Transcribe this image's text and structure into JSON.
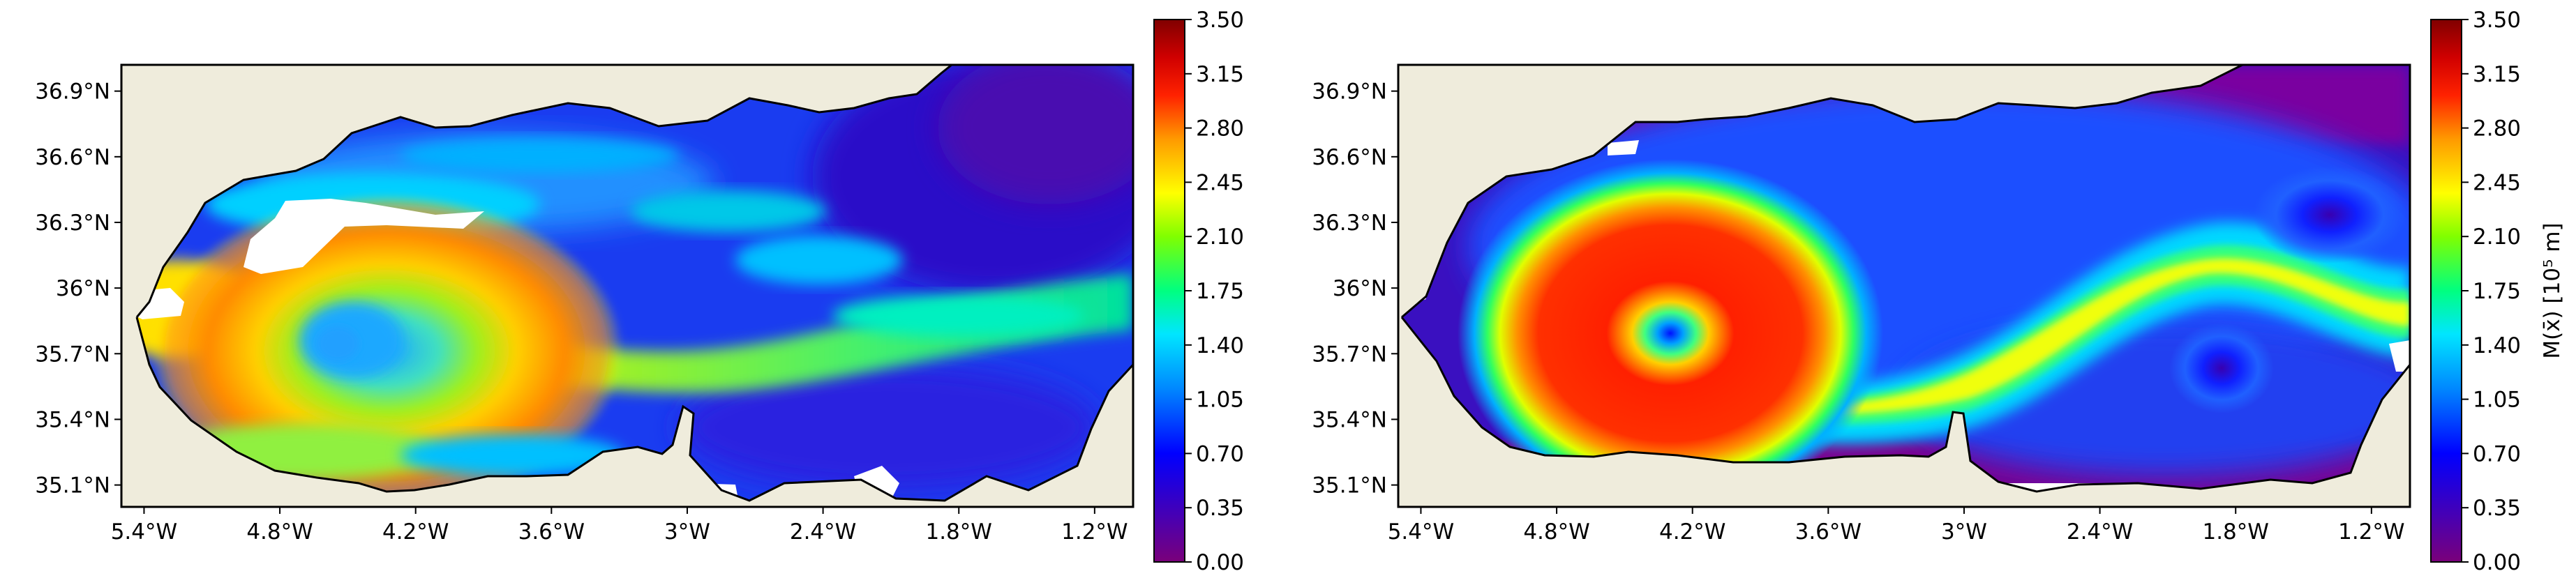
{
  "chart_data": [
    {
      "type": "heatmap",
      "title": "",
      "xlabel": "",
      "ylabel": "",
      "x_ticks": [
        "5.4°W",
        "4.8°W",
        "4.2°W",
        "3.6°W",
        "3°W",
        "2.4°W",
        "1.8°W",
        "1.2°W"
      ],
      "x_tick_values": [
        -5.4,
        -4.8,
        -4.2,
        -3.6,
        -3.0,
        -2.4,
        -1.8,
        -1.2
      ],
      "y_ticks": [
        "36.9°N",
        "36.6°N",
        "36.3°N",
        "36°N",
        "35.7°N",
        "35.4°N",
        "35.1°N"
      ],
      "y_tick_values": [
        36.9,
        36.6,
        36.3,
        36.0,
        35.7,
        35.4,
        35.1
      ],
      "xlim": [
        -5.5,
        -1.03
      ],
      "ylim": [
        35.0,
        37.02
      ],
      "colorbar": {
        "ticks": [
          "0.00",
          "0.35",
          "0.70",
          "1.05",
          "1.40",
          "1.75",
          "2.10",
          "2.45",
          "2.80",
          "3.15",
          "3.50"
        ],
        "range": [
          0.0,
          3.5
        ],
        "label": ""
      },
      "features": [
        {
          "name": "large anticyclonic gyre",
          "lon": -4.1,
          "lat": 35.75,
          "peak_value": 2.9
        },
        {
          "name": "gyre core minimum",
          "lon": -4.35,
          "lat": 35.72,
          "value": 1.2
        },
        {
          "name": "eastward jet",
          "lon": -2.6,
          "lat": 35.85,
          "value": 1.8
        }
      ]
    },
    {
      "type": "heatmap",
      "title": "",
      "xlabel": "",
      "ylabel": "",
      "x_ticks": [
        "5.4°W",
        "4.8°W",
        "4.2°W",
        "3.6°W",
        "3°W",
        "2.4°W",
        "1.8°W",
        "1.2°W"
      ],
      "x_tick_values": [
        -5.4,
        -4.8,
        -4.2,
        -3.6,
        -3.0,
        -2.4,
        -1.8,
        -1.2
      ],
      "y_ticks": [
        "36.9°N",
        "36.6°N",
        "36.3°N",
        "36°N",
        "35.7°N",
        "35.4°N",
        "35.1°N"
      ],
      "y_tick_values": [
        36.9,
        36.6,
        36.3,
        36.0,
        35.7,
        35.4,
        35.1
      ],
      "xlim": [
        -5.5,
        -1.03
      ],
      "ylim": [
        35.0,
        37.02
      ],
      "colorbar": {
        "ticks": [
          "0.00",
          "0.35",
          "0.70",
          "1.05",
          "1.40",
          "1.75",
          "2.10",
          "2.45",
          "2.80",
          "3.15",
          "3.50"
        ],
        "range": [
          0.0,
          3.5
        ],
        "label": "M(x̄) [10⁵ m]"
      },
      "features": [
        {
          "name": "large circular gyre",
          "lon": -4.25,
          "lat": 35.8,
          "peak_value": 3.0
        },
        {
          "name": "gyre center minimum",
          "lon": -4.27,
          "lat": 35.77,
          "value": 0.7
        },
        {
          "name": "eastern eddy",
          "lon": -1.35,
          "lat": 36.27,
          "value": 0.6
        },
        {
          "name": "southern eddy",
          "lon": -1.85,
          "lat": 35.65,
          "value": 0.6
        },
        {
          "name": "meandering jet",
          "lon": -2.2,
          "lat": 35.95,
          "value": 2.3
        }
      ]
    }
  ]
}
